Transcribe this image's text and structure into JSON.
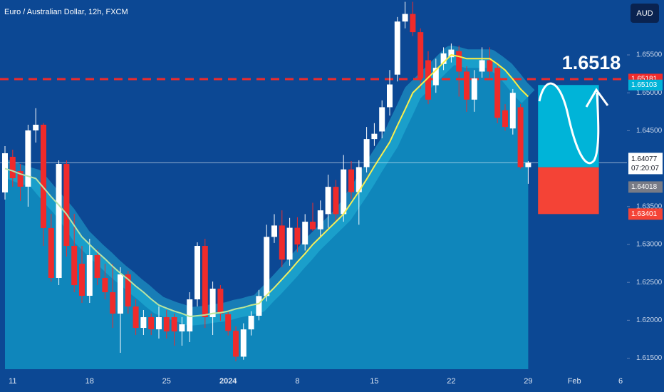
{
  "chart_data": {
    "type": "candlestick",
    "title": "Euro / Australian Dollar, 12h, FXCM",
    "currency": "AUD",
    "categories": [
      null,
      "11",
      null,
      null,
      null,
      null,
      null,
      null,
      null,
      null,
      null,
      "18",
      null,
      null,
      null,
      null,
      null,
      null,
      null,
      null,
      null,
      "25",
      null,
      null,
      null,
      null,
      null,
      null,
      null,
      "2024",
      null,
      null,
      null,
      null,
      null,
      null,
      null,
      null,
      "8",
      null,
      null,
      null,
      null,
      null,
      null,
      null,
      null,
      null,
      "15",
      null,
      null,
      null,
      null,
      null,
      null,
      null,
      null,
      null,
      "22",
      null,
      null,
      null,
      null,
      null,
      null,
      null,
      null,
      null,
      "29",
      null,
      null,
      null,
      null,
      null,
      "Feb",
      null,
      null,
      null,
      null,
      null,
      "6",
      null
    ],
    "open": [
      1.63686,
      1.64156,
      1.63968,
      1.63762,
      1.64504,
      1.64579,
      1.63216,
      1.62558,
      1.64062,
      1.62981,
      1.62746,
      1.62323,
      1.62859,
      1.62558,
      1.6237,
      1.62088,
      1.62605,
      1.62182,
      1.619,
      1.62041,
      1.61881,
      1.62041,
      1.62041,
      1.61853,
      1.61853,
      1.62276,
      1.62981,
      1.62041,
      1.62417,
      1.6208,
      1.6186,
      1.6152,
      1.6188,
      1.6206,
      1.6232,
      1.631,
      1.6325,
      1.628,
      1.6322,
      1.63,
      1.633,
      1.632,
      1.634,
      1.6376,
      1.634,
      1.6399,
      1.6369,
      1.6402,
      1.6439,
      1.6449,
      1.6481,
      1.6524,
      1.6594,
      1.6604,
      1.658,
      1.6543,
      1.651,
      1.6538,
      1.6547,
      1.6555,
      1.6528,
      1.6491,
      1.6528,
      1.6543,
      1.6533,
      1.6477,
      1.6453,
      1.6481,
      1.6402,
      null,
      null,
      null,
      null,
      null,
      null,
      null,
      null,
      null,
      null,
      null,
      null,
      null
    ],
    "high": [
      1.64297,
      1.6425,
      1.64062,
      1.64579,
      1.64797,
      1.646,
      1.63404,
      1.64109,
      1.64109,
      1.63404,
      1.62981,
      1.63075,
      1.62934,
      1.62746,
      1.62746,
      1.62699,
      1.62652,
      1.62276,
      1.62135,
      1.62088,
      1.62182,
      1.62135,
      1.62088,
      1.62041,
      1.6237,
      1.63028,
      1.63075,
      1.62511,
      1.62464,
      1.6212,
      1.6192,
      1.6196,
      1.6212,
      1.624,
      1.6326,
      1.634,
      1.6345,
      1.6335,
      1.6336,
      1.634,
      1.6355,
      1.6358,
      1.6392,
      1.6385,
      1.6418,
      1.641,
      1.6411,
      1.6455,
      1.646,
      1.649,
      1.653,
      1.66,
      1.662,
      1.662,
      1.6585,
      1.6555,
      1.6545,
      1.656,
      1.6565,
      1.6562,
      1.6535,
      1.653,
      1.656,
      1.656,
      1.654,
      1.6485,
      1.6505,
      1.6485,
      1.641,
      null,
      null,
      null,
      null,
      null,
      null,
      null,
      null,
      null,
      null,
      null,
      null,
      null
    ],
    "low": [
      1.63592,
      1.63762,
      1.63574,
      1.63498,
      1.64344,
      1.62981,
      1.6251,
      1.62464,
      1.6284,
      1.6237,
      1.62229,
      1.62229,
      1.62464,
      1.62276,
      1.619,
      1.61571,
      1.62088,
      1.61806,
      1.61806,
      1.61806,
      1.61759,
      1.61759,
      1.61665,
      1.61665,
      1.61712,
      1.62182,
      1.619,
      1.61806,
      1.61994,
      1.618,
      1.6146,
      1.6148,
      1.618,
      1.62,
      1.6225,
      1.6302,
      1.627,
      1.6272,
      1.629,
      1.6292,
      1.6318,
      1.631,
      1.6322,
      1.633,
      1.633,
      1.636,
      1.6326,
      1.6395,
      1.643,
      1.644,
      1.647,
      1.6515,
      1.6585,
      1.6575,
      1.6505,
      1.6485,
      1.65,
      1.653,
      1.654,
      1.6495,
      1.6475,
      1.6475,
      1.652,
      1.652,
      1.646,
      1.645,
      1.6445,
      1.64,
      1.638,
      null,
      null,
      null,
      null,
      null,
      null,
      null,
      null,
      null,
      null,
      null,
      null,
      null
    ],
    "close": [
      1.64203,
      1.63874,
      1.63762,
      1.64504,
      1.64579,
      1.63216,
      1.62558,
      1.64062,
      1.62981,
      1.62464,
      1.62323,
      1.62859,
      1.62558,
      1.6237,
      1.62088,
      1.62605,
      1.62182,
      1.619,
      1.62041,
      1.61881,
      1.62041,
      1.61853,
      1.61853,
      1.61947,
      1.62276,
      1.62981,
      1.62041,
      1.62417,
      1.62088,
      1.6186,
      1.6152,
      1.6188,
      1.6206,
      1.6232,
      1.631,
      1.6325,
      1.628,
      1.6322,
      1.63,
      1.633,
      1.632,
      1.6345,
      1.6376,
      1.634,
      1.6399,
      1.6369,
      1.6402,
      1.6439,
      1.6446,
      1.6481,
      1.6511,
      1.6594,
      1.6604,
      1.658,
      1.6519,
      1.6491,
      1.6533,
      1.6552,
      1.6557,
      1.6528,
      1.6491,
      1.6519,
      1.6543,
      1.6528,
      1.6467,
      1.6455,
      1.65,
      1.6402,
      1.6408,
      null,
      null,
      null,
      null,
      null,
      null,
      null,
      null,
      null,
      null,
      null,
      null,
      null
    ],
    "moving_average": [
      1.64,
      1.6397,
      1.6393,
      1.639,
      1.6387,
      1.6375,
      1.6363,
      1.6352,
      1.634,
      1.6325,
      1.631,
      1.63,
      1.629,
      1.6281,
      1.6271,
      1.6262,
      1.6254,
      1.6245,
      1.6237,
      1.6228,
      1.622,
      1.6216,
      1.6212,
      1.6209,
      1.6205,
      1.6206,
      1.6207,
      1.6209,
      1.621,
      1.6212,
      1.6215,
      1.6217,
      1.622,
      1.6222,
      1.6233,
      1.6243,
      1.6254,
      1.6265,
      1.6277,
      1.6288,
      1.63,
      1.631,
      1.632,
      1.633,
      1.634,
      1.6355,
      1.637,
      1.6386,
      1.6403,
      1.6419,
      1.6435,
      1.6457,
      1.6478,
      1.65,
      1.651,
      1.652,
      1.653,
      1.654,
      1.655,
      1.6548,
      1.6545,
      1.6545,
      1.6545,
      1.6545,
      1.6538,
      1.653,
      1.6518,
      1.6505,
      1.6495,
      null,
      null,
      null,
      null,
      null,
      null,
      null,
      null,
      null,
      null,
      null,
      null,
      null
    ],
    "up_color": "#ffffff",
    "down_color": "#ef2b2b",
    "ylim": [
      1.61355,
      1.66224
    ],
    "yticks": [
      {
        "value": 1.655,
        "label": "1.65500"
      },
      {
        "value": 1.65,
        "label": "1.65000"
      },
      {
        "value": 1.645,
        "label": "1.64500"
      },
      {
        "value": 1.635,
        "label": "1.63500"
      },
      {
        "value": 1.63,
        "label": "1.63000"
      },
      {
        "value": 1.625,
        "label": "1.62500"
      },
      {
        "value": 1.62,
        "label": "1.62000"
      },
      {
        "value": 1.615,
        "label": "1.61500"
      }
    ],
    "resistance": {
      "value": 1.65181,
      "label": "1.65181",
      "color": "#ef2b2b"
    },
    "annotation": "1.6518",
    "last_price": {
      "value": 1.64077,
      "label": "1.64077"
    },
    "countdown": "07:20:07",
    "position": {
      "target": {
        "value": 1.65103,
        "label": "1.65103",
        "color": "#00b4d8"
      },
      "entry": {
        "value": 1.64018,
        "label": "1.64018"
      },
      "stop": {
        "value": 1.63401,
        "label": "1.63401",
        "color": "#f44336"
      }
    }
  }
}
